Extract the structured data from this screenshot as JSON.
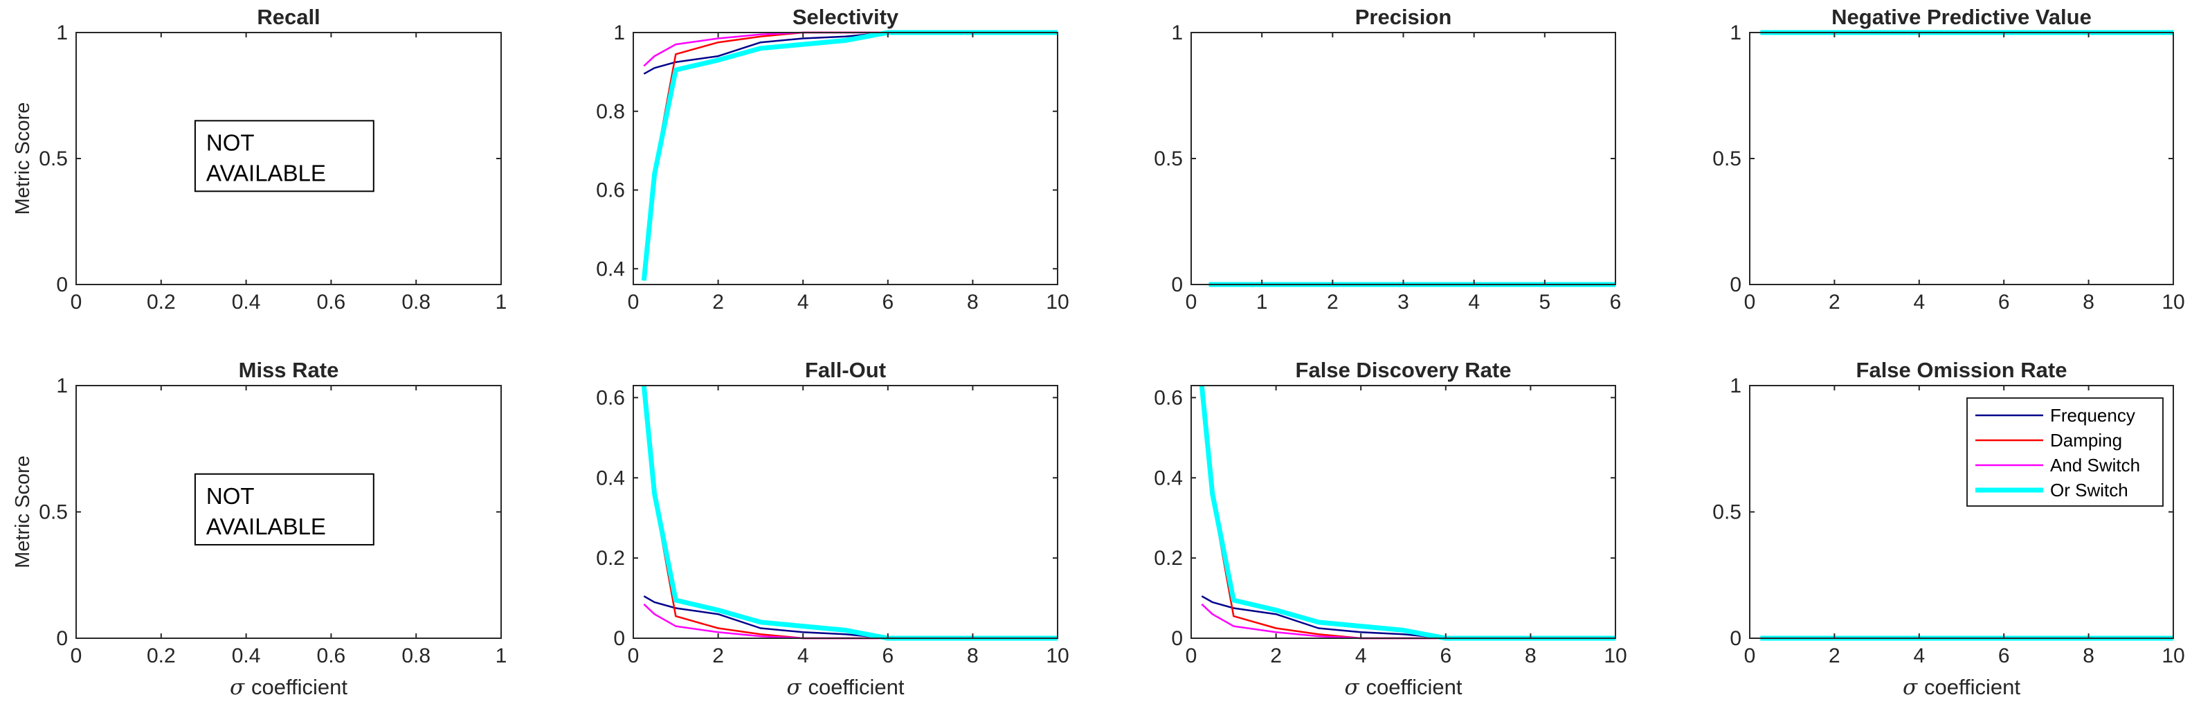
{
  "colors": {
    "frequency": "#00008b",
    "damping": "#ff0000",
    "and_switch": "#ff00ff",
    "or_switch": "#00ffff",
    "axis": "#262626"
  },
  "legend": {
    "entries": [
      "Frequency",
      "Damping",
      "And Switch",
      "Or Switch"
    ],
    "placement": "top-right of False Omission Rate panel"
  },
  "chart_data": [
    {
      "type": "line",
      "title": "Recall",
      "xlabel": "",
      "ylabel": "Metric Score",
      "xlim": [
        0,
        1
      ],
      "ylim": [
        0,
        1
      ],
      "xticks": [
        0,
        0.2,
        0.4,
        0.6,
        0.8,
        1
      ],
      "yticks": [
        0,
        0.5,
        1
      ],
      "note": "NOT AVAILABLE",
      "series": []
    },
    {
      "type": "line",
      "title": "Selectivity",
      "xlabel": "",
      "ylabel": "",
      "xlim": [
        0,
        10
      ],
      "ylim": [
        0.36,
        1
      ],
      "xticks": [
        0,
        2,
        4,
        6,
        8,
        10
      ],
      "yticks": [
        0.4,
        0.6,
        0.8,
        1
      ],
      "x": [
        0.25,
        0.5,
        1,
        2,
        3,
        4,
        5,
        6,
        7,
        8,
        9,
        10
      ],
      "series": [
        {
          "name": "Frequency",
          "values": [
            0.895,
            0.91,
            0.925,
            0.94,
            0.975,
            0.985,
            0.99,
            1,
            1,
            1,
            1,
            1
          ]
        },
        {
          "name": "Damping",
          "values": [
            0.37,
            0.65,
            0.945,
            0.975,
            0.99,
            1,
            1,
            1,
            1,
            1,
            1,
            1
          ]
        },
        {
          "name": "And Switch",
          "values": [
            0.915,
            0.94,
            0.97,
            0.985,
            0.995,
            1,
            1,
            1,
            1,
            1,
            1,
            1
          ]
        },
        {
          "name": "Or Switch",
          "values": [
            0.37,
            0.64,
            0.905,
            0.93,
            0.96,
            0.97,
            0.98,
            1,
            1,
            1,
            1,
            1
          ]
        }
      ]
    },
    {
      "type": "line",
      "title": "Precision",
      "xlabel": "",
      "ylabel": "",
      "xlim": [
        0,
        6
      ],
      "ylim": [
        0,
        1
      ],
      "xticks": [
        0,
        1,
        2,
        3,
        4,
        5,
        6
      ],
      "yticks": [
        0,
        0.5,
        1
      ],
      "x": [
        0.25,
        6
      ],
      "series": [
        {
          "name": "Or Switch",
          "values": [
            0,
            0
          ]
        }
      ]
    },
    {
      "type": "line",
      "title": "Negative Predictive Value",
      "xlabel": "",
      "ylabel": "",
      "xlim": [
        0,
        10
      ],
      "ylim": [
        0,
        1
      ],
      "xticks": [
        0,
        2,
        4,
        6,
        8,
        10
      ],
      "yticks": [
        0,
        0.5,
        1
      ],
      "x": [
        0.25,
        10
      ],
      "series": [
        {
          "name": "Or Switch",
          "values": [
            1,
            1
          ]
        }
      ]
    },
    {
      "type": "line",
      "title": "Miss Rate",
      "xlabel": "coefficient",
      "ylabel": "Metric Score",
      "xlim": [
        0,
        1
      ],
      "ylim": [
        0,
        1
      ],
      "xticks": [
        0,
        0.2,
        0.4,
        0.6,
        0.8,
        1
      ],
      "yticks": [
        0,
        0.5,
        1
      ],
      "note": "NOT AVAILABLE",
      "series": []
    },
    {
      "type": "line",
      "title": "Fall-Out",
      "xlabel": "coefficient",
      "ylabel": "",
      "xlim": [
        0,
        10
      ],
      "ylim": [
        0,
        0.63
      ],
      "xticks": [
        0,
        2,
        4,
        6,
        8,
        10
      ],
      "yticks": [
        0,
        0.2,
        0.4,
        0.6
      ],
      "x": [
        0.25,
        0.5,
        1,
        2,
        3,
        4,
        5,
        6,
        7,
        8,
        9,
        10
      ],
      "series": [
        {
          "name": "Frequency",
          "values": [
            0.105,
            0.09,
            0.075,
            0.06,
            0.025,
            0.015,
            0.01,
            0,
            0,
            0,
            0,
            0
          ]
        },
        {
          "name": "Damping",
          "values": [
            0.63,
            0.35,
            0.055,
            0.025,
            0.01,
            0,
            0,
            0,
            0,
            0,
            0,
            0
          ]
        },
        {
          "name": "And Switch",
          "values": [
            0.085,
            0.06,
            0.03,
            0.015,
            0.005,
            0,
            0,
            0,
            0,
            0,
            0,
            0
          ]
        },
        {
          "name": "Or Switch",
          "values": [
            0.63,
            0.36,
            0.095,
            0.07,
            0.04,
            0.03,
            0.02,
            0,
            0,
            0,
            0,
            0
          ]
        }
      ]
    },
    {
      "type": "line",
      "title": "False Discovery Rate",
      "xlabel": "coefficient",
      "ylabel": "",
      "xlim": [
        0,
        10
      ],
      "ylim": [
        0,
        0.63
      ],
      "xticks": [
        0,
        2,
        4,
        6,
        8,
        10
      ],
      "yticks": [
        0,
        0.2,
        0.4,
        0.6
      ],
      "x": [
        0.25,
        0.5,
        1,
        2,
        3,
        4,
        5,
        6,
        7,
        8,
        9,
        10
      ],
      "series": [
        {
          "name": "Frequency",
          "values": [
            0.105,
            0.09,
            0.075,
            0.06,
            0.025,
            0.015,
            0.01,
            0,
            0,
            0,
            0,
            0
          ]
        },
        {
          "name": "Damping",
          "values": [
            0.63,
            0.35,
            0.055,
            0.025,
            0.01,
            0,
            0,
            0,
            0,
            0,
            0,
            0
          ]
        },
        {
          "name": "And Switch",
          "values": [
            0.085,
            0.06,
            0.03,
            0.015,
            0.005,
            0,
            0,
            0,
            0,
            0,
            0,
            0
          ]
        },
        {
          "name": "Or Switch",
          "values": [
            0.63,
            0.36,
            0.095,
            0.07,
            0.04,
            0.03,
            0.02,
            0,
            0,
            0,
            0,
            0
          ]
        }
      ]
    },
    {
      "type": "line",
      "title": "False Omission Rate",
      "xlabel": "coefficient",
      "ylabel": "",
      "xlim": [
        0,
        10
      ],
      "ylim": [
        0,
        1
      ],
      "xticks": [
        0,
        2,
        4,
        6,
        8,
        10
      ],
      "yticks": [
        0,
        0.5,
        1
      ],
      "x": [
        0.25,
        10
      ],
      "series": [
        {
          "name": "Or Switch",
          "values": [
            0,
            0
          ]
        }
      ]
    }
  ]
}
